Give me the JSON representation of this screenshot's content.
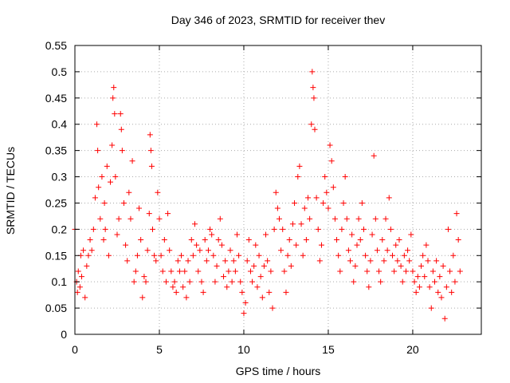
{
  "chart_data": {
    "type": "scatter",
    "title": "Day 346 of 2023, SRMTID for receiver thev",
    "xlabel": "GPS time / hours",
    "ylabel": "SRMTID / TECUs",
    "xlim": [
      0,
      24.06
    ],
    "ylim": [
      0,
      0.55
    ],
    "xticks": [
      0,
      5,
      10,
      15,
      20
    ],
    "xtick_labels": [
      "0",
      "5",
      "10",
      "15",
      "20"
    ],
    "yticks": [
      0,
      0.05,
      0.1,
      0.15,
      0.2,
      0.25,
      0.3,
      0.35,
      0.4,
      0.45,
      0.5,
      0.55
    ],
    "ytick_labels": [
      "0",
      "0.05",
      "0.1",
      "0.15",
      "0.2",
      "0.25",
      "0.3",
      "0.35",
      "0.4",
      "0.45",
      "0.5",
      "0.55"
    ],
    "grid": true,
    "marker": "+",
    "series": [
      {
        "name": "SRMTID",
        "color": "#ff0000",
        "points": [
          [
            0.0,
            0.2
          ],
          [
            0.1,
            0.1
          ],
          [
            0.15,
            0.08
          ],
          [
            0.2,
            0.12
          ],
          [
            0.3,
            0.09
          ],
          [
            0.35,
            0.15
          ],
          [
            0.4,
            0.11
          ],
          [
            0.5,
            0.16
          ],
          [
            0.6,
            0.07
          ],
          [
            0.7,
            0.13
          ],
          [
            0.8,
            0.15
          ],
          [
            0.9,
            0.18
          ],
          [
            1.0,
            0.16
          ],
          [
            1.1,
            0.2
          ],
          [
            1.2,
            0.26
          ],
          [
            1.3,
            0.4
          ],
          [
            1.35,
            0.35
          ],
          [
            1.4,
            0.28
          ],
          [
            1.5,
            0.22
          ],
          [
            1.6,
            0.3
          ],
          [
            1.7,
            0.18
          ],
          [
            1.75,
            0.25
          ],
          [
            1.8,
            0.2
          ],
          [
            1.9,
            0.32
          ],
          [
            2.0,
            0.15
          ],
          [
            2.1,
            0.29
          ],
          [
            2.2,
            0.36
          ],
          [
            2.25,
            0.45
          ],
          [
            2.3,
            0.47
          ],
          [
            2.35,
            0.42
          ],
          [
            2.4,
            0.3
          ],
          [
            2.5,
            0.19
          ],
          [
            2.6,
            0.22
          ],
          [
            2.7,
            0.42
          ],
          [
            2.75,
            0.39
          ],
          [
            2.8,
            0.35
          ],
          [
            2.9,
            0.25
          ],
          [
            3.0,
            0.17
          ],
          [
            3.1,
            0.14
          ],
          [
            3.2,
            0.27
          ],
          [
            3.3,
            0.22
          ],
          [
            3.4,
            0.33
          ],
          [
            3.5,
            0.1
          ],
          [
            3.6,
            0.12
          ],
          [
            3.7,
            0.15
          ],
          [
            3.8,
            0.24
          ],
          [
            3.9,
            0.18
          ],
          [
            4.0,
            0.07
          ],
          [
            4.1,
            0.11
          ],
          [
            4.2,
            0.1
          ],
          [
            4.3,
            0.16
          ],
          [
            4.4,
            0.23
          ],
          [
            4.45,
            0.38
          ],
          [
            4.5,
            0.35
          ],
          [
            4.55,
            0.32
          ],
          [
            4.6,
            0.2
          ],
          [
            4.7,
            0.15
          ],
          [
            4.8,
            0.14
          ],
          [
            4.9,
            0.27
          ],
          [
            5.0,
            0.22
          ],
          [
            5.1,
            0.15
          ],
          [
            5.2,
            0.12
          ],
          [
            5.3,
            0.18
          ],
          [
            5.4,
            0.1
          ],
          [
            5.5,
            0.23
          ],
          [
            5.6,
            0.16
          ],
          [
            5.7,
            0.12
          ],
          [
            5.8,
            0.09
          ],
          [
            5.9,
            0.1
          ],
          [
            6.0,
            0.08
          ],
          [
            6.1,
            0.14
          ],
          [
            6.2,
            0.12
          ],
          [
            6.3,
            0.15
          ],
          [
            6.4,
            0.09
          ],
          [
            6.5,
            0.12
          ],
          [
            6.6,
            0.07
          ],
          [
            6.7,
            0.14
          ],
          [
            6.8,
            0.1
          ],
          [
            6.9,
            0.18
          ],
          [
            7.0,
            0.15
          ],
          [
            7.1,
            0.21
          ],
          [
            7.2,
            0.17
          ],
          [
            7.3,
            0.12
          ],
          [
            7.4,
            0.16
          ],
          [
            7.5,
            0.1
          ],
          [
            7.6,
            0.08
          ],
          [
            7.7,
            0.18
          ],
          [
            7.8,
            0.14
          ],
          [
            7.9,
            0.16
          ],
          [
            8.0,
            0.2
          ],
          [
            8.1,
            0.19
          ],
          [
            8.2,
            0.15
          ],
          [
            8.3,
            0.1
          ],
          [
            8.4,
            0.13
          ],
          [
            8.5,
            0.18
          ],
          [
            8.6,
            0.22
          ],
          [
            8.7,
            0.17
          ],
          [
            8.8,
            0.11
          ],
          [
            8.9,
            0.14
          ],
          [
            9.0,
            0.09
          ],
          [
            9.1,
            0.12
          ],
          [
            9.2,
            0.16
          ],
          [
            9.3,
            0.1
          ],
          [
            9.4,
            0.14
          ],
          [
            9.5,
            0.12
          ],
          [
            9.6,
            0.19
          ],
          [
            9.7,
            0.15
          ],
          [
            9.8,
            0.1
          ],
          [
            9.9,
            0.08
          ],
          [
            10.0,
            0.04
          ],
          [
            10.1,
            0.06
          ],
          [
            10.2,
            0.14
          ],
          [
            10.3,
            0.18
          ],
          [
            10.4,
            0.12
          ],
          [
            10.5,
            0.1
          ],
          [
            10.6,
            0.13
          ],
          [
            10.7,
            0.17
          ],
          [
            10.8,
            0.09
          ],
          [
            10.9,
            0.15
          ],
          [
            11.0,
            0.11
          ],
          [
            11.1,
            0.07
          ],
          [
            11.2,
            0.13
          ],
          [
            11.3,
            0.19
          ],
          [
            11.4,
            0.14
          ],
          [
            11.5,
            0.08
          ],
          [
            11.6,
            0.12
          ],
          [
            11.7,
            0.05
          ],
          [
            11.8,
            0.2
          ],
          [
            11.9,
            0.27
          ],
          [
            12.0,
            0.24
          ],
          [
            12.1,
            0.22
          ],
          [
            12.2,
            0.16
          ],
          [
            12.3,
            0.2
          ],
          [
            12.4,
            0.12
          ],
          [
            12.5,
            0.08
          ],
          [
            12.6,
            0.15
          ],
          [
            12.7,
            0.18
          ],
          [
            12.8,
            0.13
          ],
          [
            12.9,
            0.21
          ],
          [
            13.0,
            0.25
          ],
          [
            13.1,
            0.17
          ],
          [
            13.2,
            0.3
          ],
          [
            13.3,
            0.32
          ],
          [
            13.4,
            0.21
          ],
          [
            13.5,
            0.15
          ],
          [
            13.6,
            0.24
          ],
          [
            13.7,
            0.18
          ],
          [
            13.8,
            0.26
          ],
          [
            13.9,
            0.22
          ],
          [
            14.0,
            0.4
          ],
          [
            14.05,
            0.5
          ],
          [
            14.1,
            0.47
          ],
          [
            14.15,
            0.45
          ],
          [
            14.2,
            0.39
          ],
          [
            14.3,
            0.26
          ],
          [
            14.4,
            0.2
          ],
          [
            14.5,
            0.14
          ],
          [
            14.6,
            0.17
          ],
          [
            14.7,
            0.25
          ],
          [
            14.8,
            0.3
          ],
          [
            14.9,
            0.27
          ],
          [
            15.0,
            0.24
          ],
          [
            15.1,
            0.36
          ],
          [
            15.2,
            0.33
          ],
          [
            15.3,
            0.28
          ],
          [
            15.4,
            0.22
          ],
          [
            15.5,
            0.18
          ],
          [
            15.6,
            0.15
          ],
          [
            15.7,
            0.12
          ],
          [
            15.8,
            0.2
          ],
          [
            15.9,
            0.25
          ],
          [
            16.0,
            0.3
          ],
          [
            16.1,
            0.22
          ],
          [
            16.2,
            0.16
          ],
          [
            16.3,
            0.14
          ],
          [
            16.4,
            0.19
          ],
          [
            16.5,
            0.1
          ],
          [
            16.6,
            0.13
          ],
          [
            16.7,
            0.17
          ],
          [
            16.8,
            0.22
          ],
          [
            16.9,
            0.18
          ],
          [
            17.0,
            0.25
          ],
          [
            17.1,
            0.2
          ],
          [
            17.2,
            0.15
          ],
          [
            17.3,
            0.12
          ],
          [
            17.4,
            0.09
          ],
          [
            17.5,
            0.14
          ],
          [
            17.6,
            0.19
          ],
          [
            17.7,
            0.34
          ],
          [
            17.8,
            0.22
          ],
          [
            17.9,
            0.16
          ],
          [
            18.0,
            0.12
          ],
          [
            18.1,
            0.1
          ],
          [
            18.2,
            0.18
          ],
          [
            18.3,
            0.14
          ],
          [
            18.4,
            0.22
          ],
          [
            18.5,
            0.16
          ],
          [
            18.6,
            0.26
          ],
          [
            18.7,
            0.2
          ],
          [
            18.8,
            0.15
          ],
          [
            18.9,
            0.12
          ],
          [
            19.0,
            0.17
          ],
          [
            19.1,
            0.14
          ],
          [
            19.2,
            0.18
          ],
          [
            19.3,
            0.13
          ],
          [
            19.4,
            0.1
          ],
          [
            19.5,
            0.15
          ],
          [
            19.6,
            0.12
          ],
          [
            19.7,
            0.16
          ],
          [
            19.8,
            0.14
          ],
          [
            19.9,
            0.19
          ],
          [
            20.0,
            0.12
          ],
          [
            20.1,
            0.1
          ],
          [
            20.2,
            0.08
          ],
          [
            20.3,
            0.11
          ],
          [
            20.4,
            0.09
          ],
          [
            20.5,
            0.13
          ],
          [
            20.6,
            0.15
          ],
          [
            20.7,
            0.11
          ],
          [
            20.8,
            0.17
          ],
          [
            20.9,
            0.14
          ],
          [
            21.0,
            0.09
          ],
          [
            21.1,
            0.05
          ],
          [
            21.2,
            0.12
          ],
          [
            21.3,
            0.1
          ],
          [
            21.4,
            0.14
          ],
          [
            21.5,
            0.08
          ],
          [
            21.6,
            0.11
          ],
          [
            21.7,
            0.07
          ],
          [
            21.8,
            0.13
          ],
          [
            21.9,
            0.03
          ],
          [
            22.0,
            0.09
          ],
          [
            22.1,
            0.2
          ],
          [
            22.2,
            0.12
          ],
          [
            22.3,
            0.08
          ],
          [
            22.4,
            0.15
          ],
          [
            22.5,
            0.1
          ],
          [
            22.6,
            0.23
          ],
          [
            22.7,
            0.18
          ],
          [
            22.8,
            0.12
          ]
        ]
      }
    ]
  }
}
